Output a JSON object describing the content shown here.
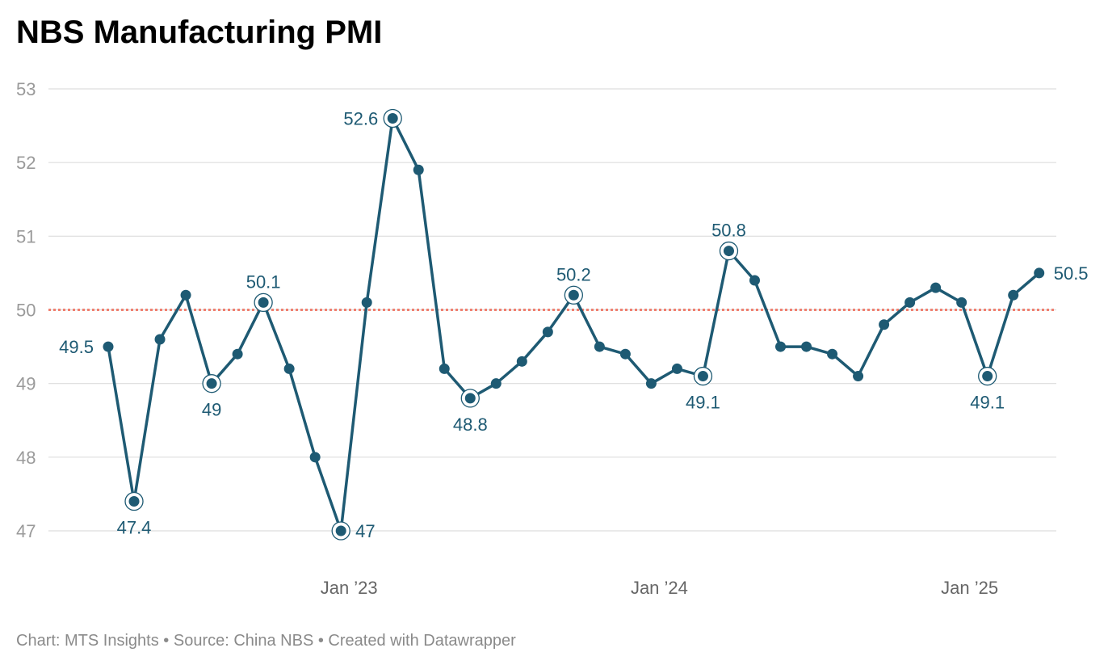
{
  "title": "NBS Manufacturing PMI",
  "footer": {
    "chart_by": "Chart: MTS Insights",
    "source": "Source: China NBS",
    "created": "Created with Datawrapper",
    "separator": "•"
  },
  "colors": {
    "line": "#1e5a73",
    "reference": "#f08070",
    "grid": "#dddddd"
  },
  "chart_data": {
    "type": "line",
    "title": "NBS Manufacturing PMI",
    "xlabel": "",
    "ylabel": "",
    "ylim": [
      47,
      53
    ],
    "yticks": [
      53,
      52,
      51,
      50,
      49,
      48,
      47
    ],
    "reference_line": 50,
    "xticks": [
      {
        "label": "Jan ’23",
        "index": 9
      },
      {
        "label": "Jan ’24",
        "index": 21
      },
      {
        "label": "Jan ’25",
        "index": 33
      }
    ],
    "series": [
      {
        "name": "NBS Manufacturing PMI",
        "values": [
          49.5,
          47.4,
          49.6,
          50.2,
          49.0,
          49.4,
          50.1,
          49.2,
          48.0,
          47.0,
          50.1,
          52.6,
          51.9,
          49.2,
          48.8,
          49.0,
          49.3,
          49.7,
          50.2,
          49.5,
          49.4,
          49.0,
          49.2,
          49.1,
          50.8,
          50.4,
          49.5,
          49.5,
          49.4,
          49.1,
          49.8,
          50.1,
          50.3,
          50.1,
          49.1,
          50.2,
          50.5
        ]
      }
    ],
    "annotations": [
      {
        "index": 0,
        "text": "49.5",
        "pos": "left",
        "ring": false
      },
      {
        "index": 1,
        "text": "47.4",
        "pos": "below",
        "ring": true
      },
      {
        "index": 4,
        "text": "49",
        "pos": "below",
        "ring": true
      },
      {
        "index": 6,
        "text": "50.1",
        "pos": "above",
        "ring": true
      },
      {
        "index": 9,
        "text": "47",
        "pos": "right",
        "ring": true
      },
      {
        "index": 11,
        "text": "52.6",
        "pos": "left",
        "ring": true
      },
      {
        "index": 14,
        "text": "48.8",
        "pos": "below",
        "ring": true
      },
      {
        "index": 18,
        "text": "50.2",
        "pos": "above",
        "ring": true
      },
      {
        "index": 23,
        "text": "49.1",
        "pos": "below",
        "ring": true
      },
      {
        "index": 24,
        "text": "50.8",
        "pos": "above",
        "ring": true
      },
      {
        "index": 34,
        "text": "49.1",
        "pos": "below",
        "ring": true
      },
      {
        "index": 36,
        "text": "50.5",
        "pos": "right",
        "ring": false
      }
    ]
  }
}
